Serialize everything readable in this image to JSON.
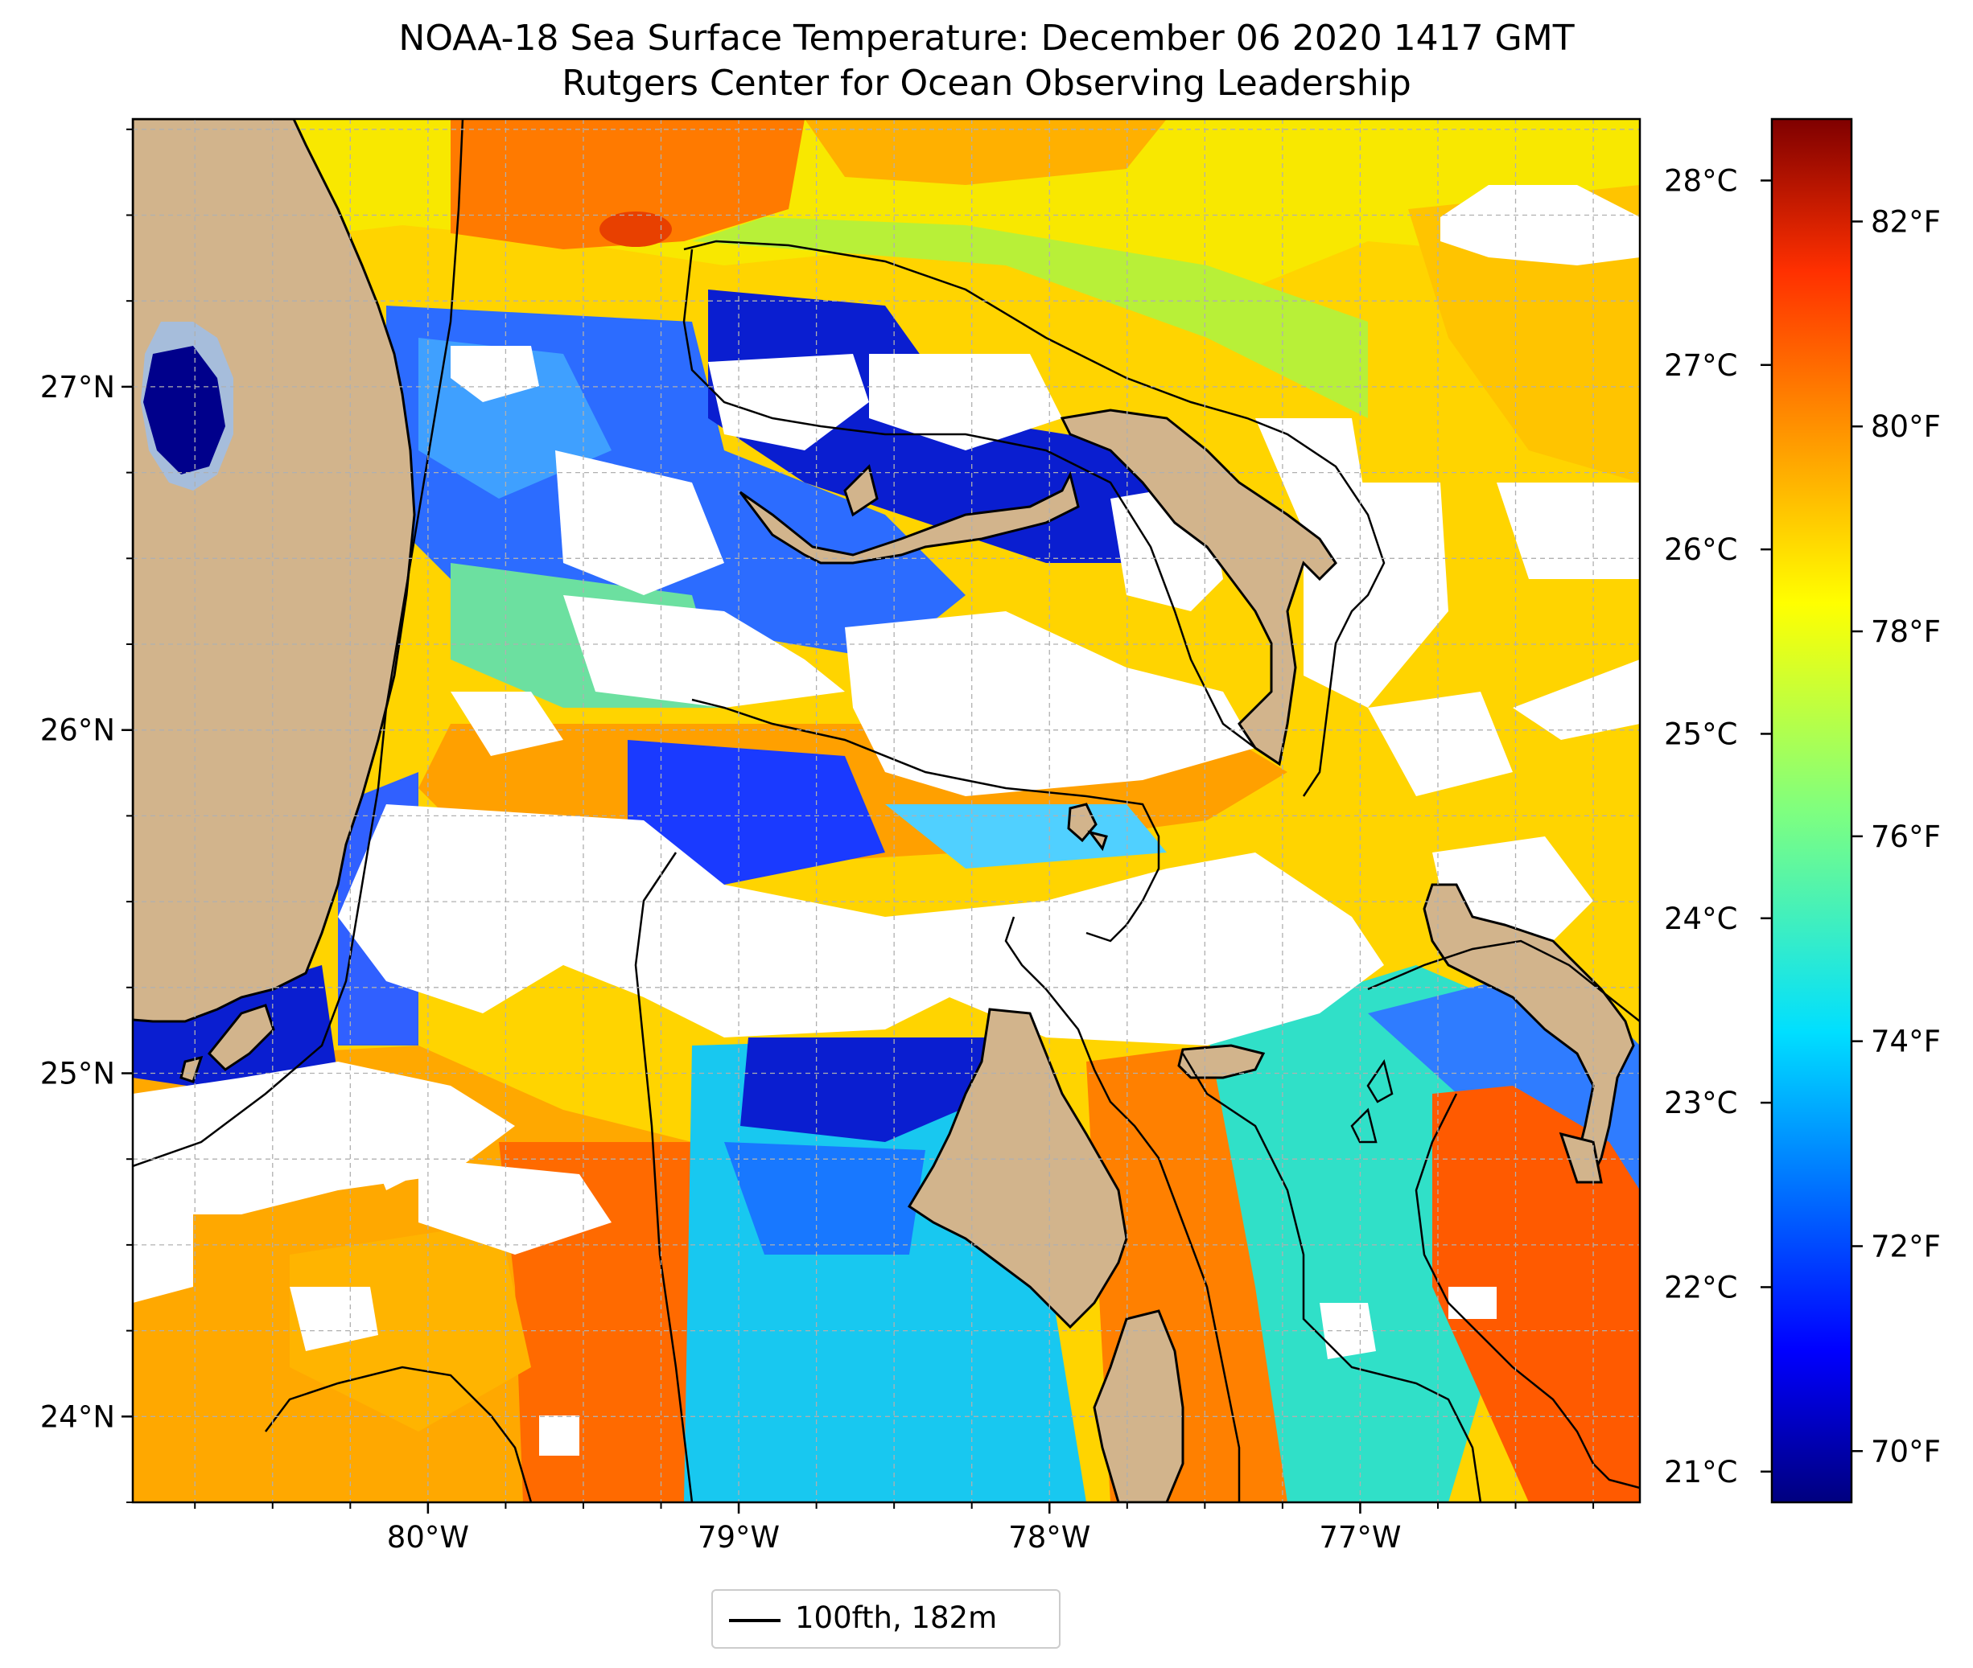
{
  "title": {
    "line1": "NOAA-18 Sea Surface Temperature: December 06 2020 1417 GMT",
    "line2": "Rutgers Center for Ocean Observing Leadership"
  },
  "map": {
    "lon_range": [
      -80.95,
      -76.1
    ],
    "lat_range": [
      23.75,
      27.78
    ],
    "lat_ticks": [
      {
        "value": 24,
        "label": "24°N"
      },
      {
        "value": 25,
        "label": "25°N"
      },
      {
        "value": 26,
        "label": "26°N"
      },
      {
        "value": 27,
        "label": "27°N"
      }
    ],
    "lon_ticks": [
      {
        "value": -80,
        "label": "80°W"
      },
      {
        "value": -79,
        "label": "79°W"
      },
      {
        "value": -78,
        "label": "78°W"
      },
      {
        "value": -77,
        "label": "77°W"
      }
    ],
    "gridlines": "dashed grey every 0.25°",
    "land_color": "#d2b48c",
    "no_data_color": "#ffffff",
    "lake_color": "#a6bddb",
    "contour_label": "100fth, 182m",
    "features": [
      "Florida coast",
      "Lake Okeechobee",
      "Florida Keys",
      "Grand Bahama",
      "Great Abaco",
      "Andros Island",
      "New Providence",
      "Eleuthera",
      "Bimini"
    ]
  },
  "colorbar": {
    "colormap": "jet",
    "celsius_ticks": [
      {
        "value": 21,
        "label": "21°C"
      },
      {
        "value": 22,
        "label": "22°C"
      },
      {
        "value": 23,
        "label": "23°C"
      },
      {
        "value": 24,
        "label": "24°C"
      },
      {
        "value": 25,
        "label": "25°C"
      },
      {
        "value": 26,
        "label": "26°C"
      },
      {
        "value": 27,
        "label": "27°C"
      },
      {
        "value": 28,
        "label": "28°C"
      }
    ],
    "fahrenheit_ticks": [
      {
        "value": 70,
        "label": "70°F"
      },
      {
        "value": 72,
        "label": "72°F"
      },
      {
        "value": 74,
        "label": "74°F"
      },
      {
        "value": 76,
        "label": "76°F"
      },
      {
        "value": 78,
        "label": "78°F"
      },
      {
        "value": 80,
        "label": "80°F"
      },
      {
        "value": 82,
        "label": "82°F"
      }
    ],
    "range_f": [
      69.5,
      83
    ]
  },
  "legend": {
    "label": "100fth, 182m"
  }
}
